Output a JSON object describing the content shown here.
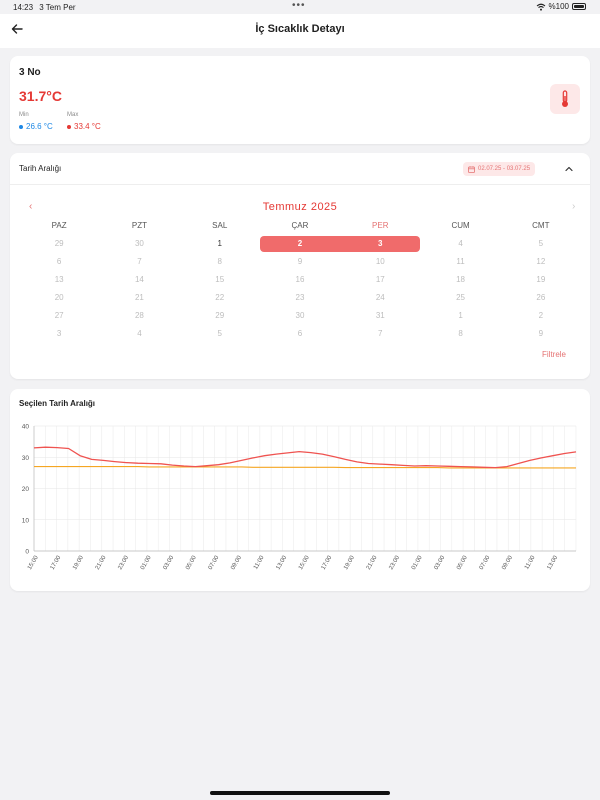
{
  "status_bar": {
    "time": "14:23",
    "date": "3 Tem Per",
    "battery": "%100",
    "dots": "•••"
  },
  "header": {
    "title": "İç Sıcaklık Detayı",
    "back_icon": "arrow-left-icon"
  },
  "device": {
    "name": "3 No",
    "temperature": "31.7°C",
    "min_label": "Min",
    "min_value": "26.6 °C",
    "max_label": "Max",
    "max_value": "33.4 °C",
    "icon": "thermometer-icon"
  },
  "date_range": {
    "title": "Tarih Aralığı",
    "chip_text": "02.07.25 - 03.07.25",
    "calendar": {
      "month": "Temmuz 2025",
      "weekdays": [
        "PAZ",
        "PZT",
        "SAL",
        "ÇAR",
        "PER",
        "CUM",
        "CMT"
      ],
      "weeks": [
        [
          "29",
          "30",
          "1",
          "2",
          "3",
          "4",
          "5"
        ],
        [
          "6",
          "7",
          "8",
          "9",
          "10",
          "11",
          "12"
        ],
        [
          "13",
          "14",
          "15",
          "16",
          "17",
          "18",
          "19"
        ],
        [
          "20",
          "21",
          "22",
          "23",
          "24",
          "25",
          "26"
        ],
        [
          "27",
          "28",
          "29",
          "30",
          "31",
          "1",
          "2"
        ],
        [
          "3",
          "4",
          "5",
          "6",
          "7",
          "8",
          "9"
        ]
      ]
    },
    "filter_label": "Filtrele"
  },
  "chart_section": {
    "title": "Seçilen Tarih Aralığı"
  },
  "colors": {
    "accent": "#e53935",
    "min_blue": "#1e88e5",
    "chip_bg": "#fde8e8",
    "series_temp": "#ef5350",
    "series_ref": "#f5a623"
  },
  "chart_data": {
    "type": "line",
    "ylim": [
      0,
      40
    ],
    "yticks": [
      0,
      10,
      20,
      30,
      40
    ],
    "x_ticks": [
      "15:00",
      "17:00",
      "19:00",
      "21:00",
      "23:00",
      "01:00",
      "03:00",
      "05:00",
      "07:00",
      "09:00",
      "11:00",
      "13:00",
      "15:00",
      "17:00",
      "19:00",
      "21:00",
      "23:00",
      "01:00",
      "03:00",
      "05:00",
      "07:00",
      "09:00",
      "11:00",
      "13:00"
    ],
    "series": [
      {
        "values": [
          33.0,
          33.2,
          33.1,
          32.8,
          30.5,
          29.3,
          29.0,
          28.6,
          28.3,
          28.1,
          28.0,
          27.9,
          27.5,
          27.2,
          27.0,
          27.3,
          27.6,
          28.2,
          29.0,
          29.8,
          30.5,
          31.0,
          31.4,
          31.8,
          31.5,
          31.0,
          30.2,
          29.3,
          28.5,
          28.0,
          27.8,
          27.6,
          27.4,
          27.2,
          27.3,
          27.2,
          27.1,
          27.0,
          26.9,
          26.8,
          26.7,
          27.0,
          28.0,
          29.0,
          29.8,
          30.5,
          31.2,
          31.7
        ]
      },
      {
        "values": [
          27.0,
          27.0,
          27.0,
          27.0,
          27.0,
          27.0,
          27.0,
          27.0,
          27.0,
          27.0,
          26.9,
          26.9,
          26.9,
          26.9,
          26.9,
          26.9,
          26.9,
          26.9,
          26.9,
          26.8,
          26.8,
          26.8,
          26.8,
          26.8,
          26.8,
          26.8,
          26.8,
          26.7,
          26.7,
          26.7,
          26.7,
          26.7,
          26.7,
          26.7,
          26.7,
          26.7,
          26.6,
          26.6,
          26.6,
          26.6,
          26.6,
          26.6,
          26.6,
          26.6,
          26.6,
          26.6,
          26.6,
          26.6
        ]
      }
    ]
  }
}
